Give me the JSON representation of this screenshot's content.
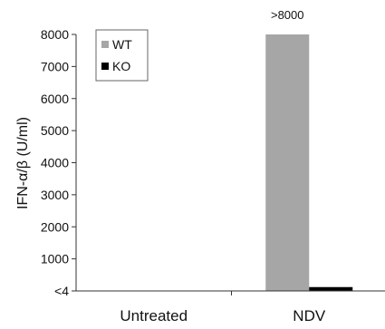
{
  "chart_data": {
    "type": "bar",
    "categories": [
      "Untreated",
      "NDV"
    ],
    "series": [
      {
        "name": "WT",
        "values": [
          0,
          8000
        ],
        "color": "#a6a6a6"
      },
      {
        "name": "KO",
        "values": [
          0,
          120
        ],
        "color": "#000000"
      }
    ],
    "ylabel": "IFN-α/β (U/ml)",
    "ylim": [
      0,
      8000
    ],
    "yticks": [
      {
        "value": 0,
        "label": "<4"
      },
      {
        "value": 1000,
        "label": "1000"
      },
      {
        "value": 2000,
        "label": "2000"
      },
      {
        "value": 3000,
        "label": "3000"
      },
      {
        "value": 4000,
        "label": "4000"
      },
      {
        "value": 5000,
        "label": "5000"
      },
      {
        "value": 6000,
        "label": "6000"
      },
      {
        "value": 7000,
        "label": "7000"
      },
      {
        "value": 8000,
        "label": "8000"
      }
    ],
    "annotations": [
      {
        "category": "NDV",
        "series": "WT",
        "text": ">8000"
      }
    ],
    "legend": "top-left",
    "grid": false
  }
}
